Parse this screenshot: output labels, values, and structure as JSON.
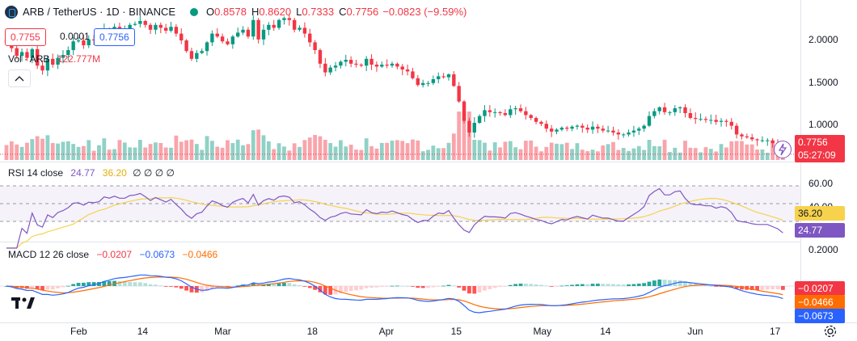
{
  "header": {
    "symbol": "ARB / TetherUS · 1D · BINANCE",
    "o_label": "O",
    "o_value": "0.8578",
    "h_label": "H",
    "h_value": "0.8620",
    "l_label": "L",
    "l_value": "0.7333",
    "c_label": "C",
    "c_value": "0.7756",
    "change": "−0.0823 (−9.59%)"
  },
  "bid_ask": {
    "sell": "0.7755",
    "spread": "0.0001",
    "buy": "0.7756"
  },
  "volume_label": {
    "name": "Vol · ARB",
    "value": "122.777M"
  },
  "rsi": {
    "label": "RSI 14 close",
    "value": "24.77",
    "ma": "36.20",
    "extra": "∅ ∅ ∅ ∅"
  },
  "macd": {
    "label": "MACD 12 26 close",
    "hist": "−0.0207",
    "macd": "−0.0673",
    "signal": "−0.0466"
  },
  "price_axis": {
    "ticks": [
      "2.0000",
      "1.5000",
      "1.0000"
    ],
    "last": "0.7756",
    "countdown": "05:27:09"
  },
  "rsi_axis": {
    "ticks": [
      "60.00",
      "40.00"
    ],
    "ma_tag": "36.20",
    "rsi_tag": "24.77"
  },
  "macd_axis": {
    "ticks": [
      "0.2000"
    ],
    "hist_tag": "−0.0207",
    "signal_tag": "−0.0466",
    "macd_tag": "−0.0673"
  },
  "time_axis": {
    "labels": [
      "Feb",
      "14",
      "Mar",
      "18",
      "Apr",
      "15",
      "May",
      "14",
      "Jun",
      "17"
    ]
  },
  "colors": {
    "up": "#089981",
    "down": "#f23645",
    "rsi": "#7e57c2",
    "rsi_ma": "#f7d24c",
    "macd": "#2962ff",
    "signal": "#ff6d00"
  },
  "chart_data": {
    "type": "candlestick",
    "interval": "1D",
    "price_range_visible": [
      0.7,
      2.3
    ],
    "closes": [
      1.93,
      1.87,
      1.79,
      1.83,
      1.77,
      1.86,
      1.69,
      1.64,
      1.76,
      1.7,
      1.77,
      1.8,
      1.85,
      1.94,
      1.95,
      1.9,
      1.96,
      1.95,
      1.97,
      2.07,
      2.05,
      2.09,
      2.06,
      2.06,
      2.11,
      2.12,
      2.15,
      2.11,
      2.06,
      2.11,
      2.08,
      2.05,
      2.09,
      2.02,
      1.95,
      1.84,
      1.76,
      1.82,
      1.84,
      1.93,
      2.02,
      1.99,
      1.94,
      1.91,
      1.99,
      2.03,
      2.06,
      1.99,
      2.16,
      1.96,
      2.06,
      2.11,
      2.08,
      2.16,
      2.18,
      2.16,
      2.06,
      2.08,
      2.02,
      1.93,
      1.85,
      1.71,
      1.62,
      1.67,
      1.69,
      1.73,
      1.75,
      1.71,
      1.7,
      1.69,
      1.76,
      1.7,
      1.68,
      1.7,
      1.69,
      1.71,
      1.68,
      1.65,
      1.63,
      1.56,
      1.49,
      1.51,
      1.51,
      1.55,
      1.58,
      1.57,
      1.6,
      1.48,
      1.32,
      1.12,
      1.0,
      1.1,
      1.17,
      1.23,
      1.21,
      1.21,
      1.2,
      1.18,
      1.24,
      1.25,
      1.22,
      1.18,
      1.15,
      1.11,
      1.09,
      1.04,
      1.01,
      1.03,
      1.05,
      1.04,
      1.06,
      1.07,
      1.05,
      1.03,
      1.06,
      1.04,
      1.02,
      1.02,
      1.0,
      0.98,
      0.98,
      1.0,
      1.02,
      1.04,
      1.07,
      1.17,
      1.22,
      1.26,
      1.21,
      1.21,
      1.25,
      1.26,
      1.2,
      1.15,
      1.14,
      1.14,
      1.13,
      1.13,
      1.11,
      1.12,
      1.11,
      1.07,
      0.98,
      0.96,
      0.95,
      0.93,
      0.92,
      0.92,
      0.92,
      0.89,
      0.8578,
      0.7756
    ]
  }
}
